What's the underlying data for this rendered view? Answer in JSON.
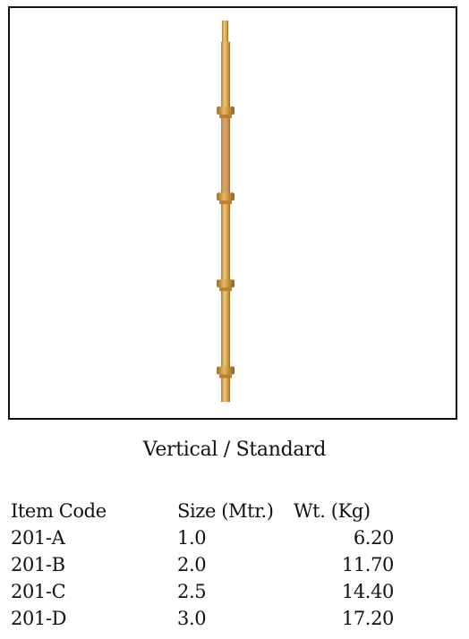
{
  "product": {
    "caption": "Vertical / Standard",
    "image_icon": "scaffold-standard-pole-icon",
    "colors": {
      "pole": "#d9a54b",
      "pole_shadow": "#a8742a",
      "highlight": "#f0c878",
      "pipe_inner": "#c9866a"
    }
  },
  "specs": {
    "headers": {
      "code": "Item Code",
      "size": "Size (Mtr.)",
      "weight": "Wt. (Kg)"
    },
    "rows": [
      {
        "code": "201-A",
        "size": "1.0",
        "weight": "6.20"
      },
      {
        "code": "201-B",
        "size": "2.0",
        "weight": "11.70"
      },
      {
        "code": "201-C",
        "size": "2.5",
        "weight": "14.40"
      },
      {
        "code": "201-D",
        "size": "3.0",
        "weight": "17.20"
      }
    ]
  }
}
